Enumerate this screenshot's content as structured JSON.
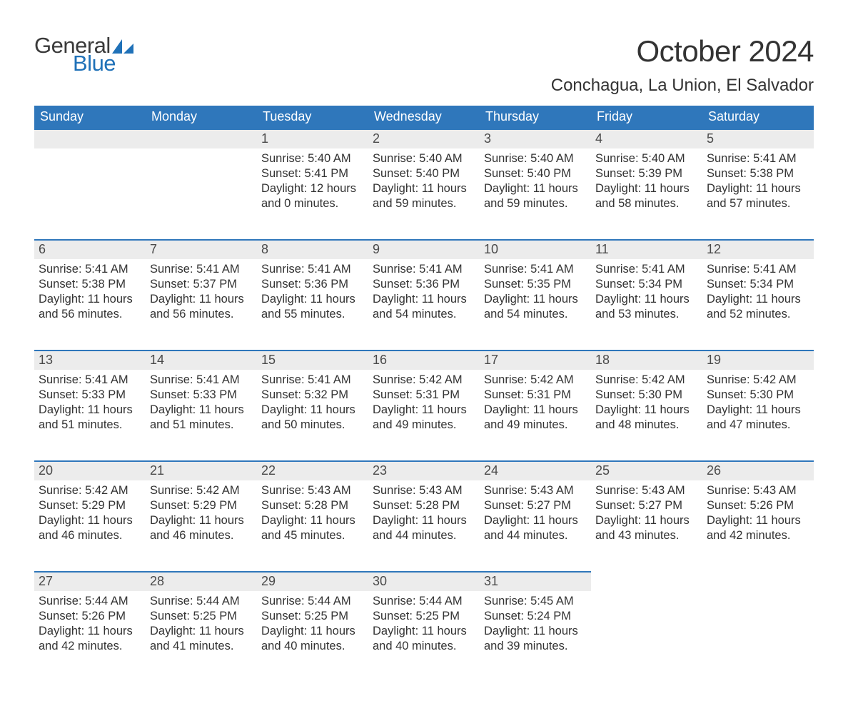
{
  "brand": {
    "word1": "General",
    "word2": "Blue",
    "shape_color": "#1f71b8"
  },
  "title": "October 2024",
  "location": "Conchagua, La Union, El Salvador",
  "header_bg": "#2f77bb",
  "header_fg": "#ffffff",
  "daynum_bg": "#ececec",
  "rule_color": "#2f77bb",
  "text_color": "#333333",
  "day_names": [
    "Sunday",
    "Monday",
    "Tuesday",
    "Wednesday",
    "Thursday",
    "Friday",
    "Saturday"
  ],
  "weeks": [
    [
      null,
      null,
      {
        "n": "1",
        "sr": "5:40 AM",
        "ss": "5:41 PM",
        "dl1": "12 hours",
        "dl2": "and 0 minutes."
      },
      {
        "n": "2",
        "sr": "5:40 AM",
        "ss": "5:40 PM",
        "dl1": "11 hours",
        "dl2": "and 59 minutes."
      },
      {
        "n": "3",
        "sr": "5:40 AM",
        "ss": "5:40 PM",
        "dl1": "11 hours",
        "dl2": "and 59 minutes."
      },
      {
        "n": "4",
        "sr": "5:40 AM",
        "ss": "5:39 PM",
        "dl1": "11 hours",
        "dl2": "and 58 minutes."
      },
      {
        "n": "5",
        "sr": "5:41 AM",
        "ss": "5:38 PM",
        "dl1": "11 hours",
        "dl2": "and 57 minutes."
      }
    ],
    [
      {
        "n": "6",
        "sr": "5:41 AM",
        "ss": "5:38 PM",
        "dl1": "11 hours",
        "dl2": "and 56 minutes."
      },
      {
        "n": "7",
        "sr": "5:41 AM",
        "ss": "5:37 PM",
        "dl1": "11 hours",
        "dl2": "and 56 minutes."
      },
      {
        "n": "8",
        "sr": "5:41 AM",
        "ss": "5:36 PM",
        "dl1": "11 hours",
        "dl2": "and 55 minutes."
      },
      {
        "n": "9",
        "sr": "5:41 AM",
        "ss": "5:36 PM",
        "dl1": "11 hours",
        "dl2": "and 54 minutes."
      },
      {
        "n": "10",
        "sr": "5:41 AM",
        "ss": "5:35 PM",
        "dl1": "11 hours",
        "dl2": "and 54 minutes."
      },
      {
        "n": "11",
        "sr": "5:41 AM",
        "ss": "5:34 PM",
        "dl1": "11 hours",
        "dl2": "and 53 minutes."
      },
      {
        "n": "12",
        "sr": "5:41 AM",
        "ss": "5:34 PM",
        "dl1": "11 hours",
        "dl2": "and 52 minutes."
      }
    ],
    [
      {
        "n": "13",
        "sr": "5:41 AM",
        "ss": "5:33 PM",
        "dl1": "11 hours",
        "dl2": "and 51 minutes."
      },
      {
        "n": "14",
        "sr": "5:41 AM",
        "ss": "5:33 PM",
        "dl1": "11 hours",
        "dl2": "and 51 minutes."
      },
      {
        "n": "15",
        "sr": "5:41 AM",
        "ss": "5:32 PM",
        "dl1": "11 hours",
        "dl2": "and 50 minutes."
      },
      {
        "n": "16",
        "sr": "5:42 AM",
        "ss": "5:31 PM",
        "dl1": "11 hours",
        "dl2": "and 49 minutes."
      },
      {
        "n": "17",
        "sr": "5:42 AM",
        "ss": "5:31 PM",
        "dl1": "11 hours",
        "dl2": "and 49 minutes."
      },
      {
        "n": "18",
        "sr": "5:42 AM",
        "ss": "5:30 PM",
        "dl1": "11 hours",
        "dl2": "and 48 minutes."
      },
      {
        "n": "19",
        "sr": "5:42 AM",
        "ss": "5:30 PM",
        "dl1": "11 hours",
        "dl2": "and 47 minutes."
      }
    ],
    [
      {
        "n": "20",
        "sr": "5:42 AM",
        "ss": "5:29 PM",
        "dl1": "11 hours",
        "dl2": "and 46 minutes."
      },
      {
        "n": "21",
        "sr": "5:42 AM",
        "ss": "5:29 PM",
        "dl1": "11 hours",
        "dl2": "and 46 minutes."
      },
      {
        "n": "22",
        "sr": "5:43 AM",
        "ss": "5:28 PM",
        "dl1": "11 hours",
        "dl2": "and 45 minutes."
      },
      {
        "n": "23",
        "sr": "5:43 AM",
        "ss": "5:28 PM",
        "dl1": "11 hours",
        "dl2": "and 44 minutes."
      },
      {
        "n": "24",
        "sr": "5:43 AM",
        "ss": "5:27 PM",
        "dl1": "11 hours",
        "dl2": "and 44 minutes."
      },
      {
        "n": "25",
        "sr": "5:43 AM",
        "ss": "5:27 PM",
        "dl1": "11 hours",
        "dl2": "and 43 minutes."
      },
      {
        "n": "26",
        "sr": "5:43 AM",
        "ss": "5:26 PM",
        "dl1": "11 hours",
        "dl2": "and 42 minutes."
      }
    ],
    [
      {
        "n": "27",
        "sr": "5:44 AM",
        "ss": "5:26 PM",
        "dl1": "11 hours",
        "dl2": "and 42 minutes."
      },
      {
        "n": "28",
        "sr": "5:44 AM",
        "ss": "5:25 PM",
        "dl1": "11 hours",
        "dl2": "and 41 minutes."
      },
      {
        "n": "29",
        "sr": "5:44 AM",
        "ss": "5:25 PM",
        "dl1": "11 hours",
        "dl2": "and 40 minutes."
      },
      {
        "n": "30",
        "sr": "5:44 AM",
        "ss": "5:25 PM",
        "dl1": "11 hours",
        "dl2": "and 40 minutes."
      },
      {
        "n": "31",
        "sr": "5:45 AM",
        "ss": "5:24 PM",
        "dl1": "11 hours",
        "dl2": "and 39 minutes."
      },
      null,
      null
    ]
  ],
  "labels": {
    "sunrise": "Sunrise:",
    "sunset": "Sunset:",
    "daylight": "Daylight:"
  }
}
